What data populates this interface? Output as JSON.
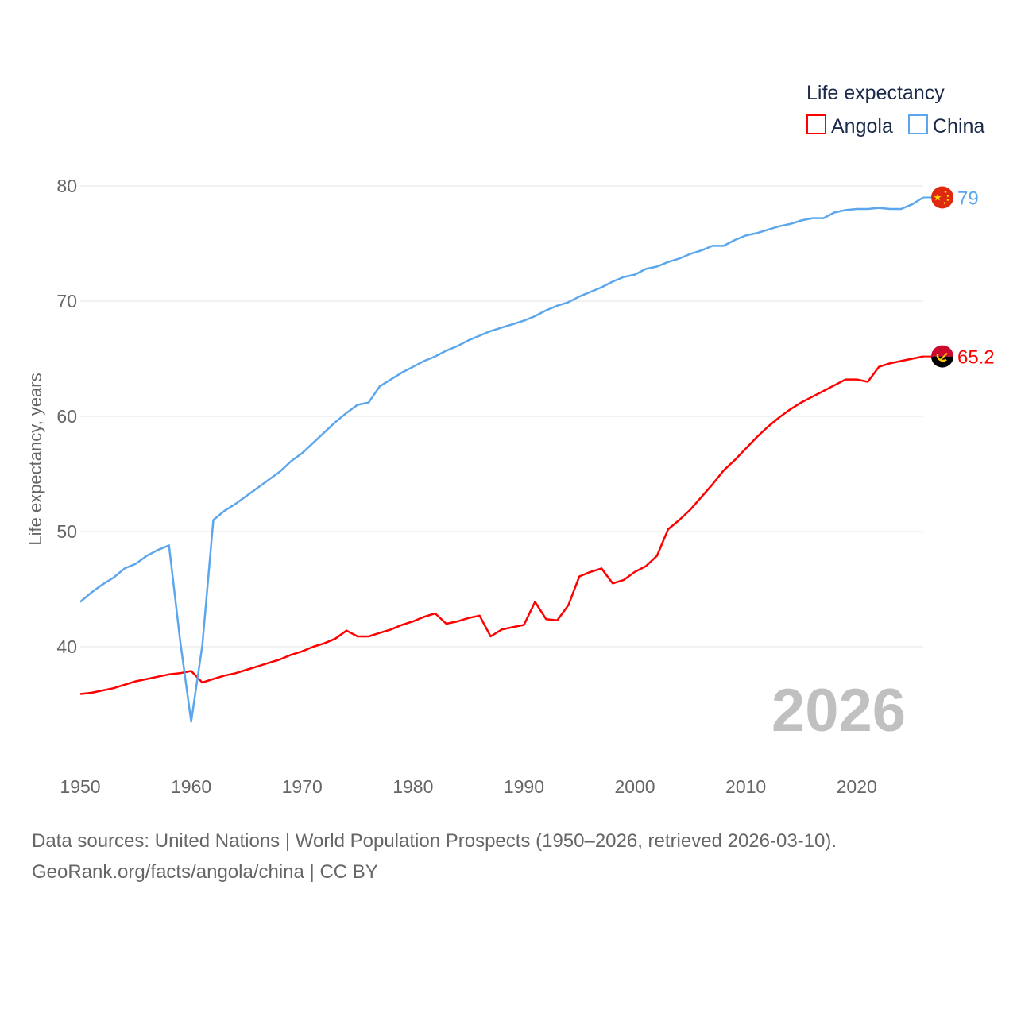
{
  "chart_data": {
    "type": "line",
    "title": "",
    "xlabel": "",
    "ylabel": "Life expectancy, years",
    "legend": {
      "title": "Life expectancy",
      "placement": "top-right"
    },
    "year_watermark": "2026",
    "xlim": [
      1950,
      2026
    ],
    "ylim": [
      30,
      82
    ],
    "x_ticks": [
      "1950",
      "1960",
      "1970",
      "1980",
      "1990",
      "2000",
      "2010",
      "2020"
    ],
    "y_ticks": [
      "40",
      "50",
      "60",
      "70",
      "80"
    ],
    "grid": true,
    "x": [
      1950,
      1951,
      1952,
      1953,
      1954,
      1955,
      1956,
      1957,
      1958,
      1959,
      1960,
      1961,
      1962,
      1963,
      1964,
      1965,
      1966,
      1967,
      1968,
      1969,
      1970,
      1971,
      1972,
      1973,
      1974,
      1975,
      1976,
      1977,
      1978,
      1979,
      1980,
      1981,
      1982,
      1983,
      1984,
      1985,
      1986,
      1987,
      1988,
      1989,
      1990,
      1991,
      1992,
      1993,
      1994,
      1995,
      1996,
      1997,
      1998,
      1999,
      2000,
      2001,
      2002,
      2003,
      2004,
      2005,
      2006,
      2007,
      2008,
      2009,
      2010,
      2011,
      2012,
      2013,
      2014,
      2015,
      2016,
      2017,
      2018,
      2019,
      2020,
      2021,
      2022,
      2023,
      2024,
      2025,
      2026
    ],
    "series": [
      {
        "name": "Angola",
        "color": "#ff0000",
        "end_label": "65.2",
        "flag": "angola-flag",
        "values": [
          35.9,
          36.0,
          36.2,
          36.4,
          36.7,
          37.0,
          37.2,
          37.4,
          37.6,
          37.7,
          37.9,
          36.9,
          37.2,
          37.5,
          37.7,
          38.0,
          38.3,
          38.6,
          38.9,
          39.3,
          39.6,
          40.0,
          40.3,
          40.7,
          41.4,
          40.9,
          40.9,
          41.2,
          41.5,
          41.9,
          42.2,
          42.6,
          42.9,
          42.0,
          42.2,
          42.5,
          42.7,
          40.9,
          41.5,
          41.7,
          41.9,
          43.9,
          42.4,
          42.3,
          43.6,
          46.1,
          46.5,
          46.8,
          45.5,
          45.8,
          46.5,
          47.0,
          47.9,
          50.2,
          51.0,
          51.9,
          53.0,
          54.1,
          55.3,
          56.2,
          57.2,
          58.2,
          59.1,
          59.9,
          60.6,
          61.2,
          61.7,
          62.2,
          62.7,
          63.2,
          63.2,
          63.0,
          64.3,
          64.6,
          64.8,
          65.0,
          65.2
        ]
      },
      {
        "name": "China",
        "color": "#5ba6ec",
        "end_label": "79",
        "flag": "china-flag",
        "values": [
          43.9,
          44.7,
          45.4,
          46.0,
          46.8,
          47.2,
          47.9,
          48.4,
          48.8,
          40.6,
          33.5,
          40.1,
          51.0,
          51.8,
          52.4,
          53.1,
          53.8,
          54.5,
          55.2,
          56.1,
          56.8,
          57.7,
          58.6,
          59.5,
          60.3,
          61.0,
          61.2,
          62.6,
          63.2,
          63.8,
          64.3,
          64.8,
          65.2,
          65.7,
          66.1,
          66.6,
          67.0,
          67.4,
          67.7,
          68.0,
          68.3,
          68.7,
          69.2,
          69.6,
          69.9,
          70.4,
          70.8,
          71.2,
          71.7,
          72.1,
          72.3,
          72.8,
          73.0,
          73.4,
          73.7,
          74.1,
          74.4,
          74.8,
          74.8,
          75.3,
          75.7,
          75.9,
          76.2,
          76.5,
          76.7,
          77.0,
          77.2,
          77.2,
          77.7,
          77.9,
          78.0,
          78.0,
          78.1,
          78.0,
          78.0,
          78.4,
          79.0
        ]
      }
    ]
  },
  "footer": {
    "source_line": "Data sources: United Nations | World Population Prospects (1950–2026, retrieved 2026-03-10).",
    "credit_line": "GeoRank.org/facts/angola/china | CC BY"
  }
}
